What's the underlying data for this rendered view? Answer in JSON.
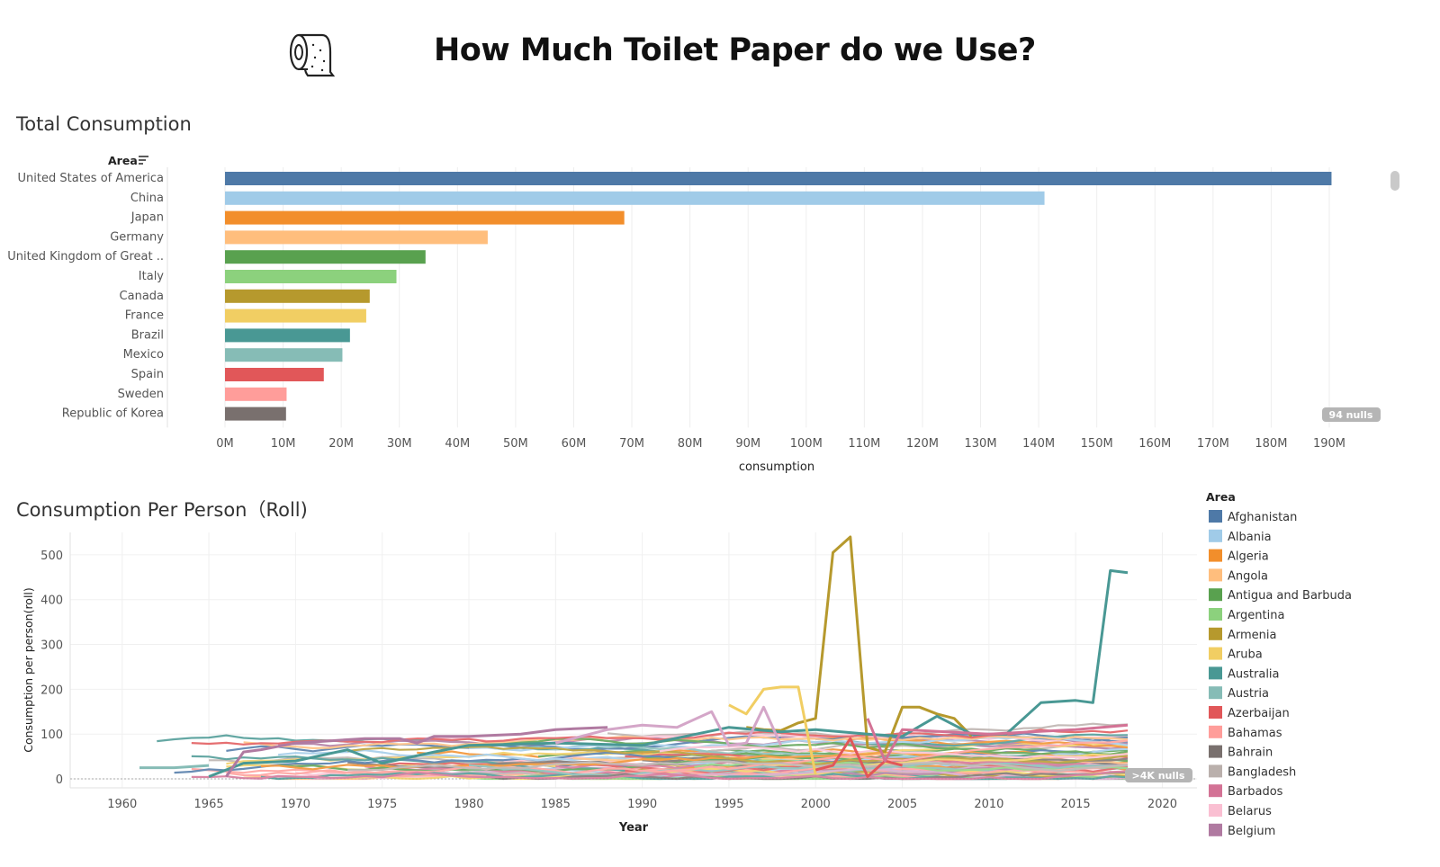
{
  "header": {
    "title": "How Much Toilet Paper do we Use?",
    "icon": "toilet-paper-icon"
  },
  "bar_section": {
    "title": "Total Consumption",
    "nulls_badge": "94 nulls"
  },
  "line_section": {
    "title": "Consumption Per Person（Roll)",
    "nulls_badge": ">4K nulls"
  },
  "colors": {
    "palette": [
      "#4e79a7",
      "#a0cbe8",
      "#f28e2b",
      "#ffbe7d",
      "#59a14f",
      "#8cd17d",
      "#b6992d",
      "#f1ce63",
      "#499894",
      "#86bcb6",
      "#e15759",
      "#ff9d9a",
      "#79706e",
      "#bab0ac",
      "#d37295",
      "#fabfd2",
      "#b07aa1",
      "#d4a6c8"
    ]
  },
  "chart_data": [
    {
      "type": "bar",
      "orientation": "horizontal",
      "title": "Total Consumption",
      "dimension_label": "Area",
      "xlabel": "consumption",
      "categories": [
        "United States of America",
        "China",
        "Japan",
        "Germany",
        "United Kingdom of Great ..",
        "Italy",
        "Canada",
        "France",
        "Brazil",
        "Mexico",
        "Spain",
        "Sweden",
        "Republic of Korea"
      ],
      "values": [
        190500000,
        141000000,
        68700000,
        45200000,
        34500000,
        29500000,
        24900000,
        24300000,
        21500000,
        20200000,
        17000000,
        10600000,
        10500000
      ],
      "xlim": [
        0,
        190000000
      ],
      "xticks": [
        "0M",
        "10M",
        "20M",
        "30M",
        "40M",
        "50M",
        "60M",
        "70M",
        "80M",
        "90M",
        "100M",
        "110M",
        "120M",
        "130M",
        "140M",
        "150M",
        "160M",
        "170M",
        "180M",
        "190M"
      ],
      "grid": true
    },
    {
      "type": "line",
      "title": "Consumption Per Person（Roll)",
      "xlabel": "Year",
      "ylabel": "Consumption per person(roll)",
      "xlim": [
        1957,
        2022
      ],
      "ylim": [
        -20,
        550
      ],
      "xticks": [
        1960,
        1965,
        1970,
        1975,
        1980,
        1985,
        1990,
        1995,
        2000,
        2005,
        2010,
        2015,
        2020
      ],
      "yticks": [
        0,
        100,
        200,
        300,
        400,
        500
      ],
      "legend_title": "Area",
      "legend_position": "right",
      "legend": [
        "Afghanistan",
        "Albania",
        "Algeria",
        "Angola",
        "Antigua and Barbuda",
        "Argentina",
        "Armenia",
        "Aruba",
        "Australia",
        "Austria",
        "Azerbaijan",
        "Bahamas",
        "Bahrain",
        "Bangladesh",
        "Barbados",
        "Belarus",
        "Belgium"
      ],
      "highlight_series": [
        {
          "color": "#b6992d",
          "x": [
            1996,
            1997,
            1998,
            1999,
            2000,
            2001,
            2002,
            2003,
            2004,
            2005,
            2006,
            2007,
            2008,
            2009
          ],
          "y": [
            115,
            110,
            108,
            125,
            135,
            505,
            540,
            70,
            60,
            160,
            160,
            145,
            135,
            95
          ]
        },
        {
          "color": "#499894",
          "x": [
            1965,
            1967,
            1970,
            1973,
            1975,
            1978,
            1980,
            1985,
            1990,
            1995,
            1998,
            2000,
            2003,
            2005,
            2007,
            2009,
            2011,
            2013,
            2015,
            2016,
            2017,
            2018
          ],
          "y": [
            5,
            35,
            40,
            65,
            35,
            60,
            75,
            80,
            75,
            115,
            105,
            110,
            100,
            95,
            140,
            100,
            100,
            170,
            175,
            170,
            465,
            460
          ]
        },
        {
          "color": "#f1ce63",
          "x": [
            1995,
            1996,
            1997,
            1998,
            1999,
            2000
          ],
          "y": [
            165,
            145,
            200,
            205,
            205,
            10
          ]
        },
        {
          "color": "#86bcb6",
          "x": [
            1961,
            1963,
            1965
          ],
          "y": [
            25,
            25,
            30
          ]
        },
        {
          "color": "#b07aa1",
          "x": [
            1966,
            1967,
            1968,
            1970,
            1972,
            1974,
            1976,
            1977,
            1978,
            1980,
            1983,
            1985,
            1988
          ],
          "y": [
            5,
            60,
            65,
            80,
            85,
            90,
            90,
            80,
            95,
            95,
            100,
            110,
            115
          ]
        },
        {
          "color": "#d4a6c8",
          "x": [
            1985,
            1988,
            1990,
            1992,
            1994,
            1995,
            1996,
            1997,
            1998
          ],
          "y": [
            80,
            110,
            120,
            115,
            150,
            75,
            80,
            160,
            75
          ]
        },
        {
          "color": "#e15759",
          "x": [
            2000,
            2001,
            2002,
            2003,
            2004,
            2005
          ],
          "y": [
            20,
            30,
            90,
            5,
            40,
            30
          ]
        },
        {
          "color": "#d37295",
          "x": [
            2003,
            2004,
            2005,
            2010,
            2015,
            2018
          ],
          "y": [
            135,
            40,
            110,
            100,
            110,
            120
          ]
        }
      ]
    }
  ]
}
